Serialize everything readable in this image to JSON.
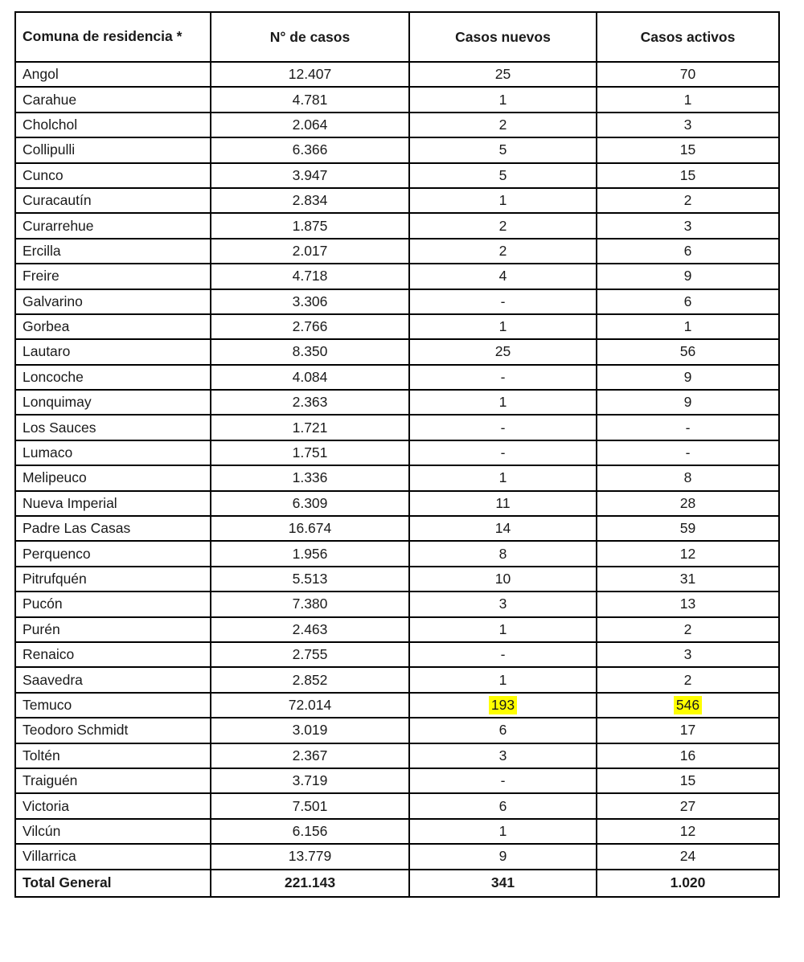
{
  "table": {
    "header": {
      "comuna": "Comuna de residencia *",
      "casos": "N° de casos",
      "nuevos": "Casos nuevos",
      "activos": "Casos activos"
    },
    "highlight_color": "#ffff00",
    "rows": [
      {
        "comuna": "Angol",
        "casos": "12.407",
        "nuevos": "25",
        "activos": "70",
        "highlight": []
      },
      {
        "comuna": "Carahue",
        "casos": "4.781",
        "nuevos": "1",
        "activos": "1",
        "highlight": []
      },
      {
        "comuna": "Cholchol",
        "casos": "2.064",
        "nuevos": "2",
        "activos": "3",
        "highlight": []
      },
      {
        "comuna": "Collipulli",
        "casos": "6.366",
        "nuevos": "5",
        "activos": "15",
        "highlight": []
      },
      {
        "comuna": "Cunco",
        "casos": "3.947",
        "nuevos": "5",
        "activos": "15",
        "highlight": []
      },
      {
        "comuna": "Curacautín",
        "casos": "2.834",
        "nuevos": "1",
        "activos": "2",
        "highlight": []
      },
      {
        "comuna": "Curarrehue",
        "casos": "1.875",
        "nuevos": "2",
        "activos": "3",
        "highlight": []
      },
      {
        "comuna": "Ercilla",
        "casos": "2.017",
        "nuevos": "2",
        "activos": "6",
        "highlight": []
      },
      {
        "comuna": "Freire",
        "casos": "4.718",
        "nuevos": "4",
        "activos": "9",
        "highlight": []
      },
      {
        "comuna": "Galvarino",
        "casos": "3.306",
        "nuevos": "-",
        "activos": "6",
        "highlight": []
      },
      {
        "comuna": "Gorbea",
        "casos": "2.766",
        "nuevos": "1",
        "activos": "1",
        "highlight": []
      },
      {
        "comuna": "Lautaro",
        "casos": "8.350",
        "nuevos": "25",
        "activos": "56",
        "highlight": []
      },
      {
        "comuna": "Loncoche",
        "casos": "4.084",
        "nuevos": "-",
        "activos": "9",
        "highlight": []
      },
      {
        "comuna": "Lonquimay",
        "casos": "2.363",
        "nuevos": "1",
        "activos": "9",
        "highlight": []
      },
      {
        "comuna": "Los Sauces",
        "casos": "1.721",
        "nuevos": "-",
        "activos": "-",
        "highlight": []
      },
      {
        "comuna": "Lumaco",
        "casos": "1.751",
        "nuevos": "-",
        "activos": "-",
        "highlight": []
      },
      {
        "comuna": "Melipeuco",
        "casos": "1.336",
        "nuevos": "1",
        "activos": "8",
        "highlight": []
      },
      {
        "comuna": "Nueva Imperial",
        "casos": "6.309",
        "nuevos": "11",
        "activos": "28",
        "highlight": []
      },
      {
        "comuna": "Padre Las Casas",
        "casos": "16.674",
        "nuevos": "14",
        "activos": "59",
        "highlight": []
      },
      {
        "comuna": "Perquenco",
        "casos": "1.956",
        "nuevos": "8",
        "activos": "12",
        "highlight": []
      },
      {
        "comuna": "Pitrufquén",
        "casos": "5.513",
        "nuevos": "10",
        "activos": "31",
        "highlight": []
      },
      {
        "comuna": "Pucón",
        "casos": "7.380",
        "nuevos": "3",
        "activos": "13",
        "highlight": []
      },
      {
        "comuna": "Purén",
        "casos": "2.463",
        "nuevos": "1",
        "activos": "2",
        "highlight": []
      },
      {
        "comuna": "Renaico",
        "casos": "2.755",
        "nuevos": "-",
        "activos": "3",
        "highlight": []
      },
      {
        "comuna": "Saavedra",
        "casos": "2.852",
        "nuevos": "1",
        "activos": "2",
        "highlight": []
      },
      {
        "comuna": "Temuco",
        "casos": "72.014",
        "nuevos": "193",
        "activos": "546",
        "highlight": [
          "nuevos",
          "activos"
        ]
      },
      {
        "comuna": "Teodoro Schmidt",
        "casos": "3.019",
        "nuevos": "6",
        "activos": "17",
        "highlight": []
      },
      {
        "comuna": "Toltén",
        "casos": "2.367",
        "nuevos": "3",
        "activos": "16",
        "highlight": []
      },
      {
        "comuna": "Traiguén",
        "casos": "3.719",
        "nuevos": "-",
        "activos": "15",
        "highlight": []
      },
      {
        "comuna": "Victoria",
        "casos": "7.501",
        "nuevos": "6",
        "activos": "27",
        "highlight": []
      },
      {
        "comuna": "Vilcún",
        "casos": "6.156",
        "nuevos": "1",
        "activos": "12",
        "highlight": []
      },
      {
        "comuna": "Villarrica",
        "casos": "13.779",
        "nuevos": "9",
        "activos": "24",
        "highlight": []
      }
    ],
    "total": {
      "comuna": "Total General",
      "casos": "221.143",
      "nuevos": "341",
      "activos": "1.020"
    }
  }
}
